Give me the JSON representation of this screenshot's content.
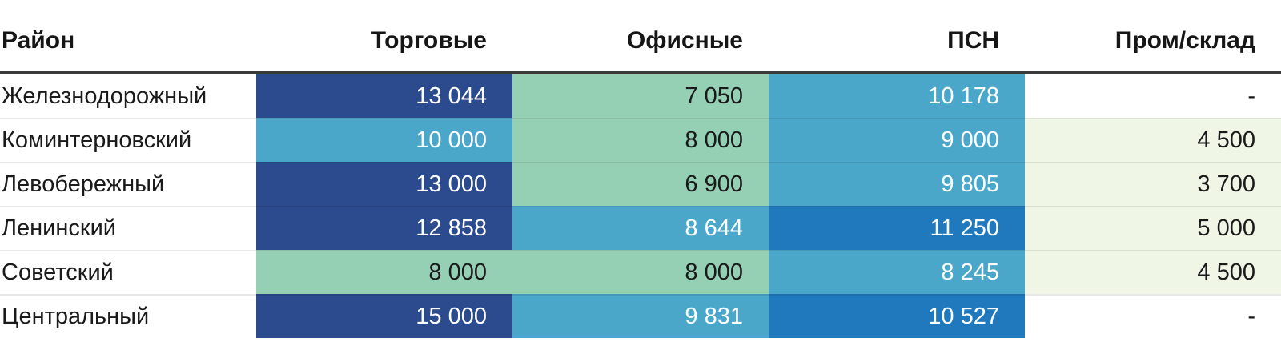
{
  "header": {
    "columns": [
      "Район",
      "Торговые",
      "Офисные",
      "ПСН",
      "Пром/склад"
    ]
  },
  "palette": {
    "navy": "#2B4B8E",
    "blue_strong": "#2179BD",
    "blue": "#4BA7C9",
    "green": "#95D0B5",
    "green_light": "#EFF6E6",
    "text_dark": "#1A1A1A",
    "text_light": "#FFFFFF",
    "header_rule": "#3A3A3A"
  },
  "rows": [
    {
      "label": "Железнодорожный",
      "cells": [
        {
          "text": "13 044",
          "bg": "#2B4B8E",
          "fg": "#FFFFFF"
        },
        {
          "text": "7 050",
          "bg": "#95D0B5",
          "fg": "#1A1A1A"
        },
        {
          "text": "10 178",
          "bg": "#4BA7C9",
          "fg": "#FFFFFF"
        },
        {
          "text": "-",
          "bg": "#FFFFFF",
          "fg": "#1A1A1A"
        }
      ]
    },
    {
      "label": "Коминтерновский",
      "cells": [
        {
          "text": "10 000",
          "bg": "#4BA7C9",
          "fg": "#FFFFFF"
        },
        {
          "text": "8 000",
          "bg": "#95D0B5",
          "fg": "#1A1A1A"
        },
        {
          "text": "9 000",
          "bg": "#4BA7C9",
          "fg": "#FFFFFF"
        },
        {
          "text": "4 500",
          "bg": "#EFF6E6",
          "fg": "#1A1A1A"
        }
      ]
    },
    {
      "label": "Левобережный",
      "cells": [
        {
          "text": "13 000",
          "bg": "#2B4B8E",
          "fg": "#FFFFFF"
        },
        {
          "text": "6 900",
          "bg": "#95D0B5",
          "fg": "#1A1A1A"
        },
        {
          "text": "9 805",
          "bg": "#4BA7C9",
          "fg": "#FFFFFF"
        },
        {
          "text": "3 700",
          "bg": "#EFF6E6",
          "fg": "#1A1A1A"
        }
      ]
    },
    {
      "label": "Ленинский",
      "cells": [
        {
          "text": "12 858",
          "bg": "#2B4B8E",
          "fg": "#FFFFFF"
        },
        {
          "text": "8 644",
          "bg": "#4BA7C9",
          "fg": "#FFFFFF"
        },
        {
          "text": "11 250",
          "bg": "#2179BD",
          "fg": "#FFFFFF"
        },
        {
          "text": "5 000",
          "bg": "#EFF6E6",
          "fg": "#1A1A1A"
        }
      ]
    },
    {
      "label": "Советский",
      "cells": [
        {
          "text": "8 000",
          "bg": "#95D0B5",
          "fg": "#1A1A1A"
        },
        {
          "text": "8 000",
          "bg": "#95D0B5",
          "fg": "#1A1A1A"
        },
        {
          "text": "8 245",
          "bg": "#4BA7C9",
          "fg": "#FFFFFF"
        },
        {
          "text": "4 500",
          "bg": "#EFF6E6",
          "fg": "#1A1A1A"
        }
      ]
    },
    {
      "label": "Центральный",
      "cells": [
        {
          "text": "15 000",
          "bg": "#2B4B8E",
          "fg": "#FFFFFF"
        },
        {
          "text": "9 831",
          "bg": "#4BA7C9",
          "fg": "#FFFFFF"
        },
        {
          "text": "10 527",
          "bg": "#2179BD",
          "fg": "#FFFFFF"
        },
        {
          "text": "-",
          "bg": "#FFFFFF",
          "fg": "#1A1A1A"
        }
      ]
    }
  ],
  "chart_data": {
    "type": "heatmap",
    "title": "",
    "categories": [
      "Железнодорожный",
      "Коминтерновский",
      "Левобережный",
      "Ленинский",
      "Советский",
      "Центральный"
    ],
    "series": [
      {
        "name": "Торговые",
        "values": [
          13044,
          10000,
          13000,
          12858,
          8000,
          15000
        ]
      },
      {
        "name": "Офисные",
        "values": [
          7050,
          8000,
          6900,
          8644,
          8000,
          9831
        ]
      },
      {
        "name": "ПСН",
        "values": [
          10178,
          9000,
          9805,
          11250,
          8245,
          10527
        ]
      },
      {
        "name": "Пром/склад",
        "values": [
          null,
          4500,
          3700,
          5000,
          4500,
          null
        ]
      }
    ],
    "legend": "none",
    "color_scale": {
      "low_color": "#EFF6E6",
      "mid_colors": [
        "#95D0B5",
        "#4BA7C9",
        "#2179BD"
      ],
      "high_color": "#2B4B8E",
      "missing_color": "#FFFFFF"
    }
  }
}
